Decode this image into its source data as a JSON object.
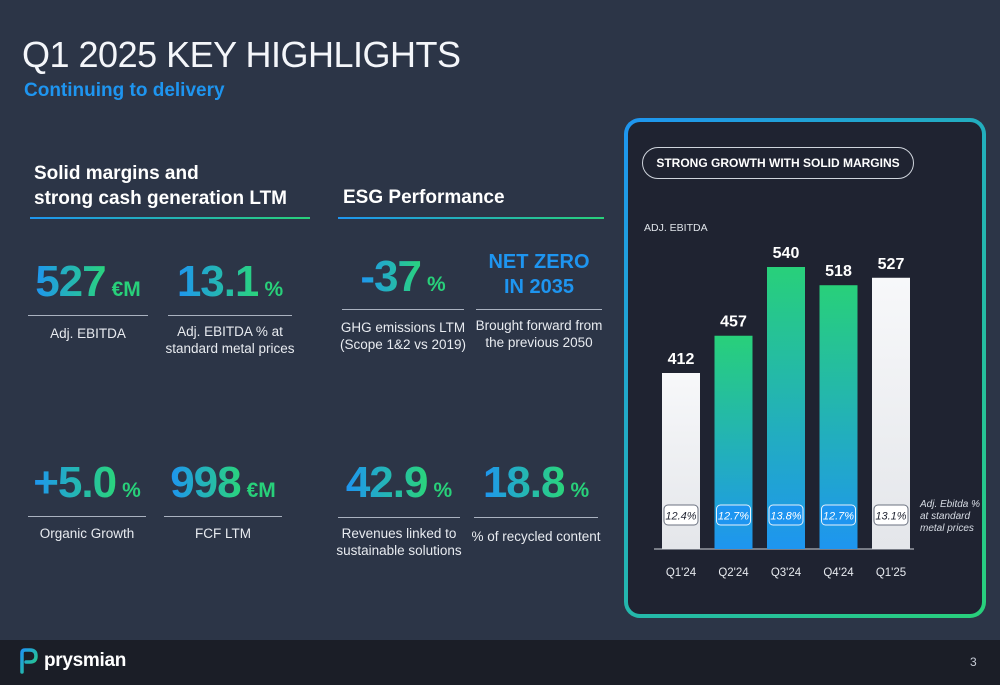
{
  "header": {
    "title": "Q1 2025 KEY HIGHLIGHTS",
    "subtitle": "Continuing to delivery"
  },
  "sections": {
    "margins": {
      "heading_line1": "Solid margins and",
      "heading_line2": "strong cash generation LTM"
    },
    "esg": {
      "heading": "ESG Performance"
    }
  },
  "kpis": {
    "adj_ebitda": {
      "value": "527",
      "unit": "€M",
      "label": "Adj. EBITDA"
    },
    "adj_ebitda_pct": {
      "value": "13.1",
      "unit": "%",
      "label_line1": "Adj. EBITDA % at",
      "label_line2": "standard metal prices"
    },
    "organic_growth": {
      "value": "+5.0",
      "unit": "%",
      "label": "Organic Growth"
    },
    "fcf_ltm": {
      "value": "998",
      "unit": "€M",
      "label": "FCF LTM"
    },
    "ghg": {
      "value": "-37",
      "unit": "%",
      "label_line1": "GHG emissions LTM",
      "label_line2": "(Scope 1&2 vs 2019)"
    },
    "net_zero": {
      "line1": "NET ZERO",
      "line2": "IN 2035",
      "label_line1": "Brought forward from",
      "label_line2": "the previous 2050"
    },
    "revenues_sustainable": {
      "value": "42.9",
      "unit": "%",
      "label_line1": "Revenues linked to",
      "label_line2": "sustainable solutions"
    },
    "recycled": {
      "value": "18.8",
      "unit": "%",
      "label": "% of recycled content"
    }
  },
  "chart_panel": {
    "pill": "STRONG GROWTH WITH SOLID MARGINS",
    "ylabel": "ADJ. EBITDA",
    "note_line1": "Adj. Ebitda %",
    "note_line2": "at standard",
    "note_line3": "metal prices"
  },
  "chart_data": {
    "type": "bar",
    "title": "",
    "xlabel": "",
    "ylabel": "ADJ. EBITDA",
    "categories": [
      "Q1'24",
      "Q2'24",
      "Q3'24",
      "Q4'24",
      "Q1'25"
    ],
    "series": [
      {
        "name": "",
        "values": [
          412,
          457,
          540,
          518,
          527
        ]
      }
    ],
    "margin_labels": [
      "12.4%",
      "12.7%",
      "13.8%",
      "12.7%",
      "13.1%"
    ],
    "bar_styles": [
      "light",
      "gradient",
      "gradient",
      "gradient",
      "light"
    ],
    "ylim": [
      0,
      540
    ],
    "grid": false,
    "colors": {
      "gradient_top": "#28d07a",
      "gradient_bottom": "#1e95f0",
      "light": "#f2f3f5"
    }
  },
  "footer": {
    "brand": "prysmian",
    "page": "3"
  },
  "colors": {
    "background": "#2c3547",
    "accent_blue": "#1e95f0",
    "accent_green": "#28d07a"
  }
}
